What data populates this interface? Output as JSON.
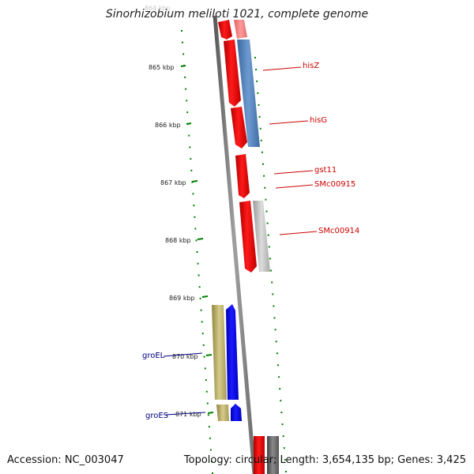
{
  "title": "Sinorhizobium meliloti 1021, complete genome",
  "accession": "Accession: NC_003047",
  "summary": "Topology: circular; Length: 3,654,135 bp; Genes: 3,425",
  "top_tick_label": "864 kbp",
  "ticks": [
    {
      "label": "865 kbp",
      "kb": 865
    },
    {
      "label": "866 kbp",
      "kb": 866
    },
    {
      "label": "867 kbp",
      "kb": 867
    },
    {
      "label": "868 kbp",
      "kb": 868
    },
    {
      "label": "869 kbp",
      "kb": 869
    },
    {
      "label": "870 kbp",
      "kb": 870
    },
    {
      "label": "871 kbp",
      "kb": 871
    }
  ],
  "gene_labels": [
    {
      "name": "hisZ",
      "color": "#cc0000"
    },
    {
      "name": "hisG",
      "color": "#cc0000"
    },
    {
      "name": "gst11",
      "color": "#cc0000"
    },
    {
      "name": "SMc00915",
      "color": "#cc0000"
    },
    {
      "name": "SMc00914",
      "color": "#cc0000"
    },
    {
      "name": "groEL",
      "color": "#000080"
    },
    {
      "name": "groES",
      "color": "#000080"
    }
  ],
  "colors": {
    "forward_gene": "#ff0000",
    "reverse_gene": "#0000ff",
    "cog_blue": "#4f7fb5",
    "cog_grey": "#bcbcbc",
    "cog_olive": "#bdb06f",
    "backbone": "#808080",
    "tick": "#008000"
  }
}
